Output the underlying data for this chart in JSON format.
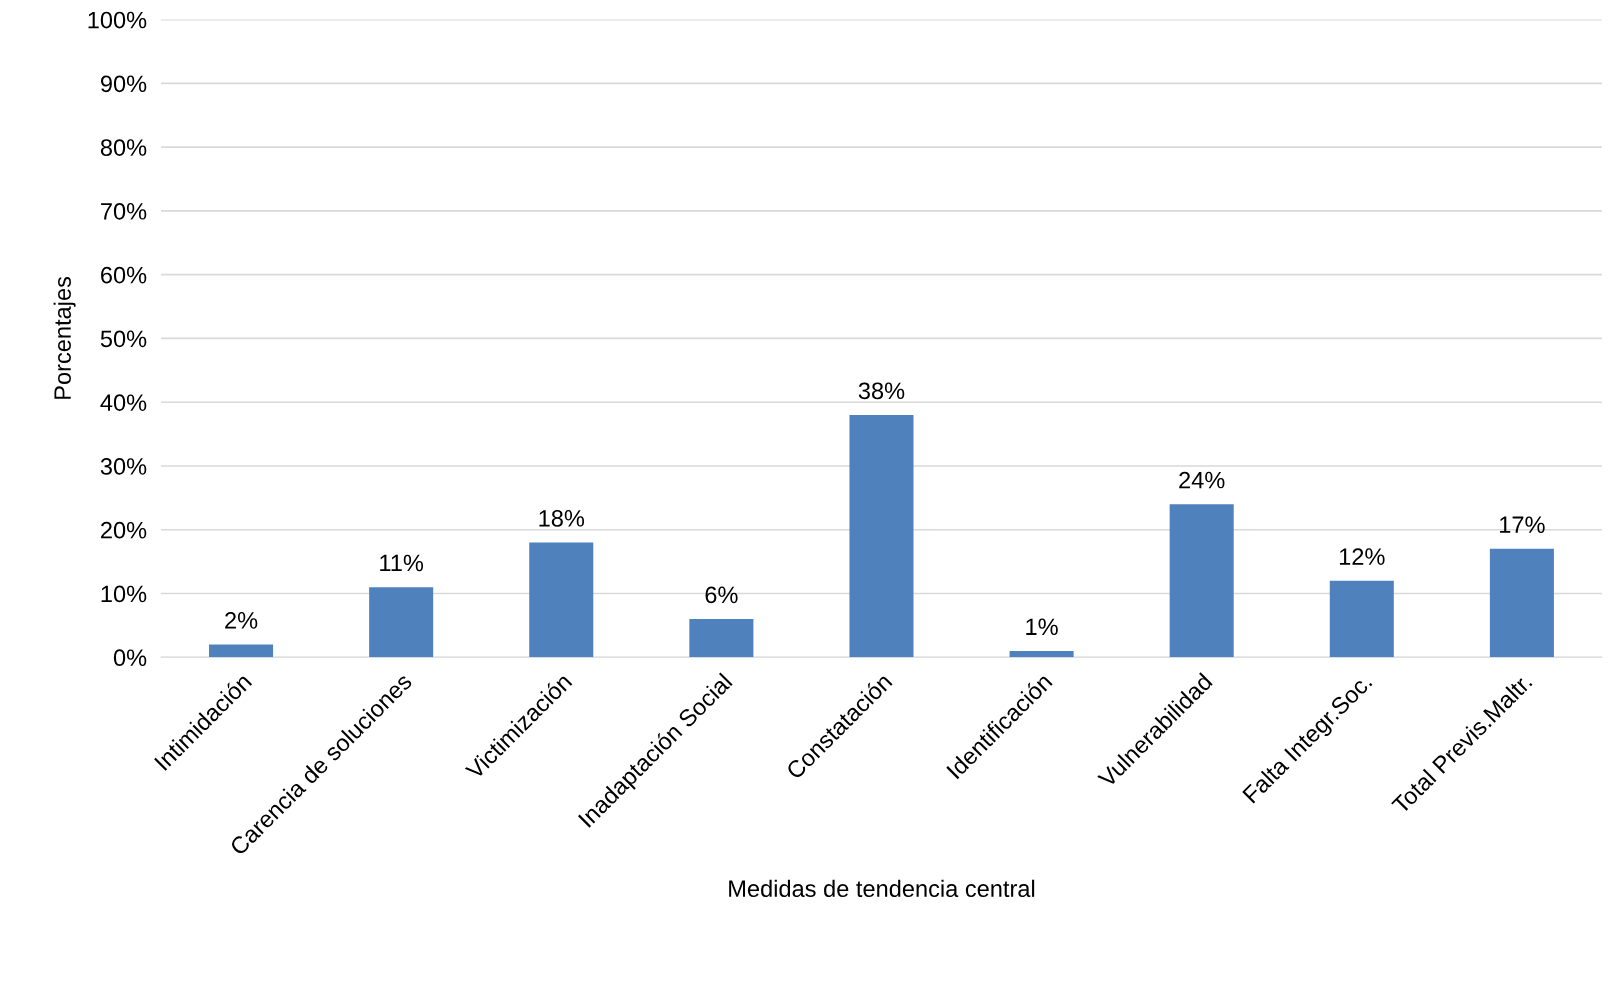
{
  "chart_data": {
    "type": "bar",
    "xlabel": "Medidas de tendencia central",
    "ylabel": "Porcentajes",
    "categories": [
      "Intimidación",
      "Carencia de soluciones",
      "Victimización",
      "Inadaptación Social",
      "Constatación",
      "Identificación",
      "Vulnerabilidad",
      "Falta Integr.Soc.",
      "Total Previs.Maltr."
    ],
    "values": [
      2,
      11,
      18,
      6,
      38,
      1,
      24,
      12,
      17
    ],
    "value_labels": [
      "2%",
      "11%",
      "18%",
      "6%",
      "38%",
      "1%",
      "24%",
      "12%",
      "17%"
    ],
    "color": "#4f81bd",
    "ylim": [
      0,
      100
    ],
    "yticks": [
      {
        "value": 0,
        "label": "0%"
      },
      {
        "value": 10,
        "label": "10%"
      },
      {
        "value": 20,
        "label": "20%"
      },
      {
        "value": 30,
        "label": "30%"
      },
      {
        "value": 40,
        "label": "40%"
      },
      {
        "value": 50,
        "label": "50%"
      },
      {
        "value": 60,
        "label": "60%"
      },
      {
        "value": 70,
        "label": "70%"
      },
      {
        "value": 80,
        "label": "80%"
      },
      {
        "value": 90,
        "label": "90%"
      },
      {
        "value": 100,
        "label": "100%"
      }
    ],
    "grid": "y",
    "legend": false
  }
}
